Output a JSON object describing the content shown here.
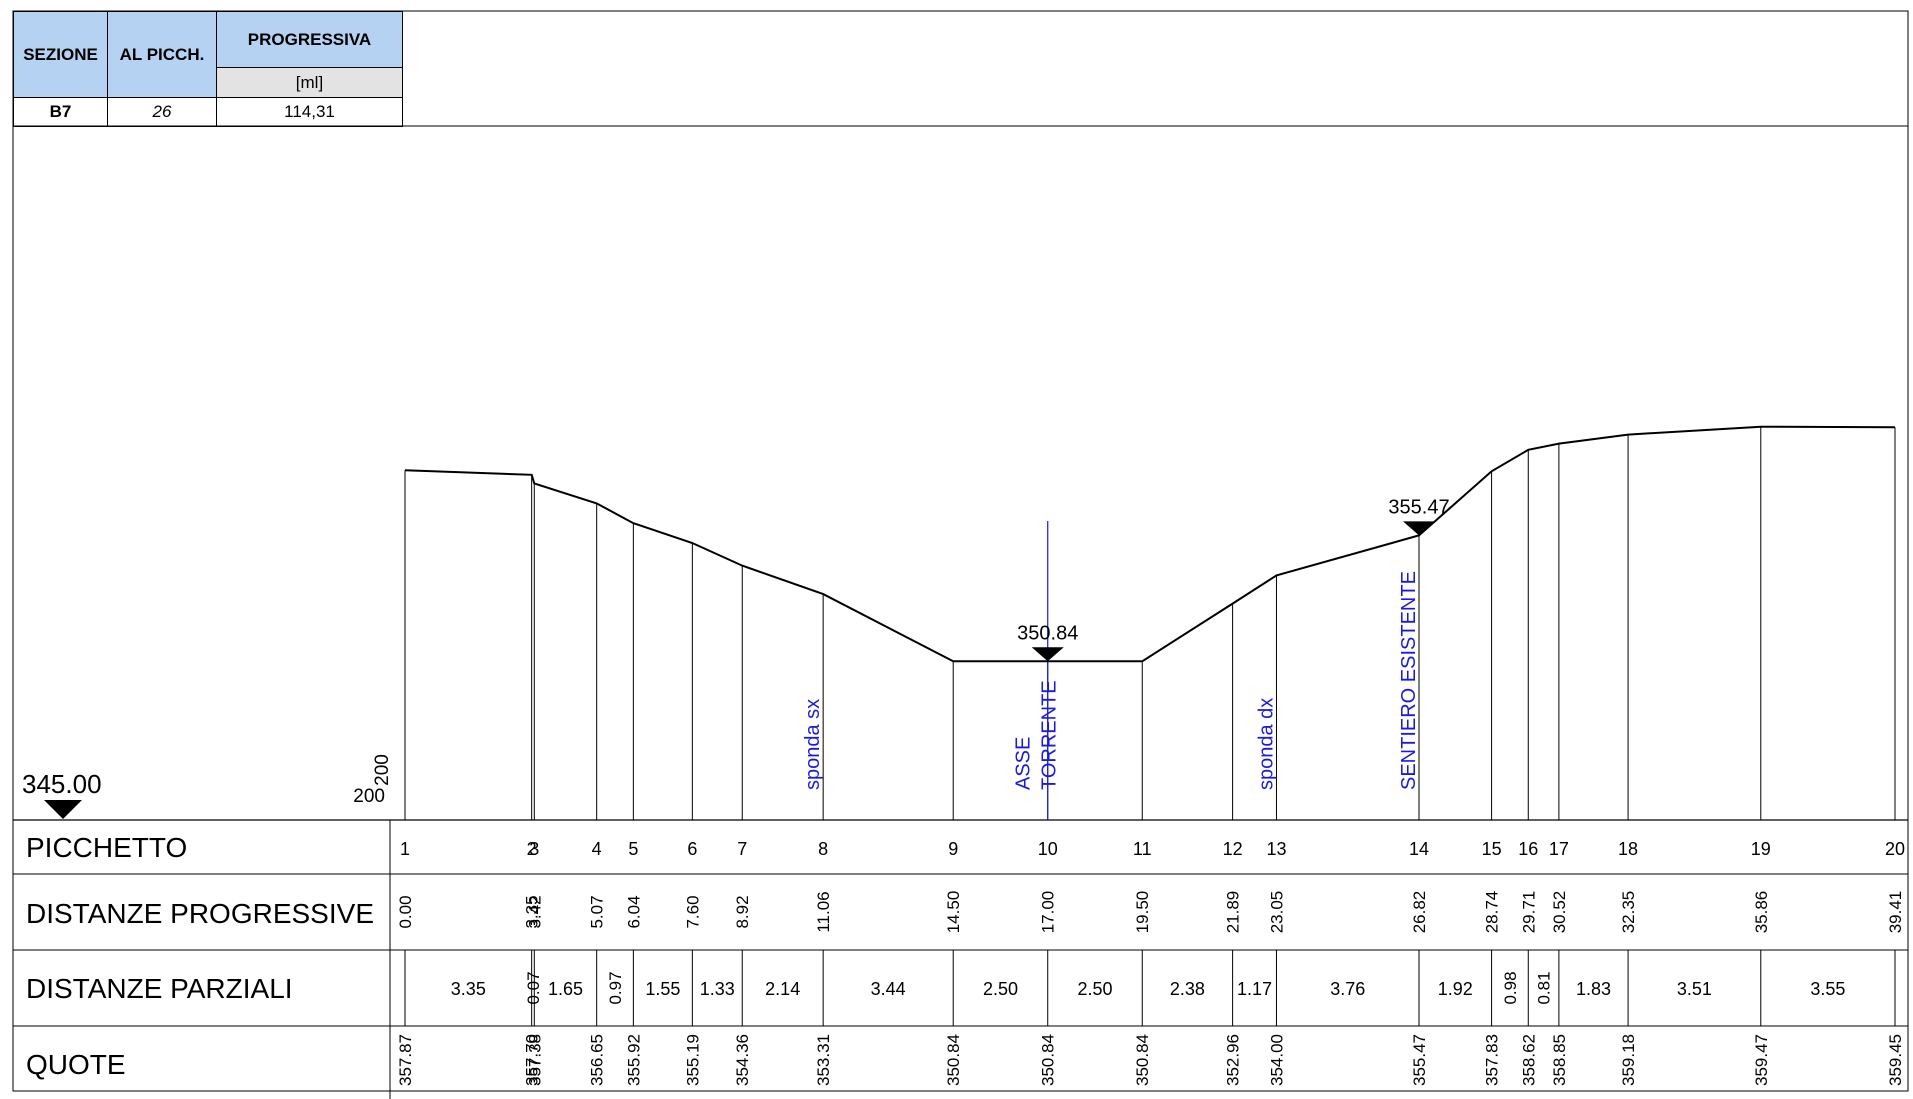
{
  "header_table": {
    "col_sezione": "SEZIONE",
    "col_al_picch": "AL PICCH.",
    "col_progressiva": "PROGRESSIVA",
    "progressiva_unit": "[ml]",
    "sezione": "B7",
    "al_picch": "26",
    "progressiva": "114,31"
  },
  "datum": {
    "value": 345.0,
    "label": "345.00",
    "scale_h": "200",
    "scale_v": "200"
  },
  "rows": {
    "picchetto": "PICCHETTO",
    "progressive": "DISTANZE PROGRESSIVE",
    "parziali": "DISTANZE PARZIALI",
    "quote": "QUOTE"
  },
  "chart_data": {
    "type": "line",
    "x_unit": "m",
    "y_unit": "m",
    "x_range": [
      0,
      39.41
    ],
    "y_datum": 345.0,
    "stations": [
      {
        "id": "1",
        "prog": 0.0,
        "prog_label": "0.00",
        "quota": 357.87,
        "quota_label": "357.87"
      },
      {
        "id": "2",
        "prog": 3.35,
        "prog_label": "3.35",
        "quota": 357.7,
        "quota_label": "357.70"
      },
      {
        "id": "3",
        "prog": 3.42,
        "prog_label": "3.42",
        "quota": 357.38,
        "quota_label": "357.38"
      },
      {
        "id": "4",
        "prog": 5.07,
        "prog_label": "5.07",
        "quota": 356.65,
        "quota_label": "356.65"
      },
      {
        "id": "5",
        "prog": 6.04,
        "prog_label": "6.04",
        "quota": 355.92,
        "quota_label": "355.92"
      },
      {
        "id": "6",
        "prog": 7.6,
        "prog_label": "7.60",
        "quota": 355.19,
        "quota_label": "355.19"
      },
      {
        "id": "7",
        "prog": 8.92,
        "prog_label": "8.92",
        "quota": 354.36,
        "quota_label": "354.36"
      },
      {
        "id": "8",
        "prog": 11.06,
        "prog_label": "11.06",
        "quota": 353.31,
        "quota_label": "353.31"
      },
      {
        "id": "9",
        "prog": 14.5,
        "prog_label": "14.50",
        "quota": 350.84,
        "quota_label": "350.84"
      },
      {
        "id": "10",
        "prog": 17.0,
        "prog_label": "17.00",
        "quota": 350.84,
        "quota_label": "350.84"
      },
      {
        "id": "11",
        "prog": 19.5,
        "prog_label": "19.50",
        "quota": 350.84,
        "quota_label": "350.84"
      },
      {
        "id": "12",
        "prog": 21.89,
        "prog_label": "21.89",
        "quota": 352.96,
        "quota_label": "352.96"
      },
      {
        "id": "13",
        "prog": 23.05,
        "prog_label": "23.05",
        "quota": 354.0,
        "quota_label": "354.00"
      },
      {
        "id": "14",
        "prog": 26.82,
        "prog_label": "26.82",
        "quota": 355.47,
        "quota_label": "355.47"
      },
      {
        "id": "15",
        "prog": 28.74,
        "prog_label": "28.74",
        "quota": 357.83,
        "quota_label": "357.83"
      },
      {
        "id": "16",
        "prog": 29.71,
        "prog_label": "29.71",
        "quota": 358.62,
        "quota_label": "358.62"
      },
      {
        "id": "17",
        "prog": 30.52,
        "prog_label": "30.52",
        "quota": 358.85,
        "quota_label": "358.85"
      },
      {
        "id": "18",
        "prog": 32.35,
        "prog_label": "32.35",
        "quota": 359.18,
        "quota_label": "359.18"
      },
      {
        "id": "19",
        "prog": 35.86,
        "prog_label": "35.86",
        "quota": 359.47,
        "quota_label": "359.47"
      },
      {
        "id": "20",
        "prog": 39.41,
        "prog_label": "39.41",
        "quota": 359.45,
        "quota_label": "359.45"
      }
    ],
    "partials": [
      {
        "label": "3.35",
        "from": 0.0,
        "to": 3.35,
        "rotated": false
      },
      {
        "label": "0.07",
        "from": 3.35,
        "to": 3.42,
        "rotated": true
      },
      {
        "label": "1.65",
        "from": 3.42,
        "to": 5.07,
        "rotated": false
      },
      {
        "label": "0.97",
        "from": 5.07,
        "to": 6.04,
        "rotated": true
      },
      {
        "label": "1.55",
        "from": 6.04,
        "to": 7.6,
        "rotated": false
      },
      {
        "label": "1.33",
        "from": 7.6,
        "to": 8.92,
        "rotated": false
      },
      {
        "label": "2.14",
        "from": 8.92,
        "to": 11.06,
        "rotated": false
      },
      {
        "label": "3.44",
        "from": 11.06,
        "to": 14.5,
        "rotated": false
      },
      {
        "label": "2.50",
        "from": 14.5,
        "to": 17.0,
        "rotated": false
      },
      {
        "label": "2.50",
        "from": 17.0,
        "to": 19.5,
        "rotated": false
      },
      {
        "label": "2.38",
        "from": 19.5,
        "to": 21.89,
        "rotated": false
      },
      {
        "label": "1.17",
        "from": 21.89,
        "to": 23.05,
        "rotated": false
      },
      {
        "label": "3.76",
        "from": 23.05,
        "to": 26.82,
        "rotated": false
      },
      {
        "label": "1.92",
        "from": 26.82,
        "to": 28.74,
        "rotated": false
      },
      {
        "label": "0.98",
        "from": 28.74,
        "to": 29.71,
        "rotated": true
      },
      {
        "label": "0.81",
        "from": 29.71,
        "to": 30.52,
        "rotated": true
      },
      {
        "label": "1.83",
        "from": 30.52,
        "to": 32.35,
        "rotated": false
      },
      {
        "label": "3.51",
        "from": 32.35,
        "to": 35.86,
        "rotated": false
      },
      {
        "label": "3.55",
        "from": 35.86,
        "to": 39.41,
        "rotated": false
      }
    ],
    "level_markers": [
      {
        "label": "350.84",
        "prog": 17.0,
        "quota": 350.84
      },
      {
        "label": "355.47",
        "prog": 26.82,
        "quota": 355.47
      }
    ],
    "annotations": [
      {
        "lines": [
          "sponda sx"
        ],
        "prog": 11.06
      },
      {
        "lines": [
          "ASSE",
          "TORRENTE"
        ],
        "prog": 17.0
      },
      {
        "lines": [
          "sponda dx"
        ],
        "prog": 23.05
      },
      {
        "lines": [
          "SENTIERO ESISTENTE"
        ],
        "prog": 26.82
      }
    ],
    "axis_line": {
      "prog": 17.0,
      "quota_top": 356.0
    },
    "colors": {
      "profile": "#000000",
      "annotation": "#1a1adc"
    }
  }
}
